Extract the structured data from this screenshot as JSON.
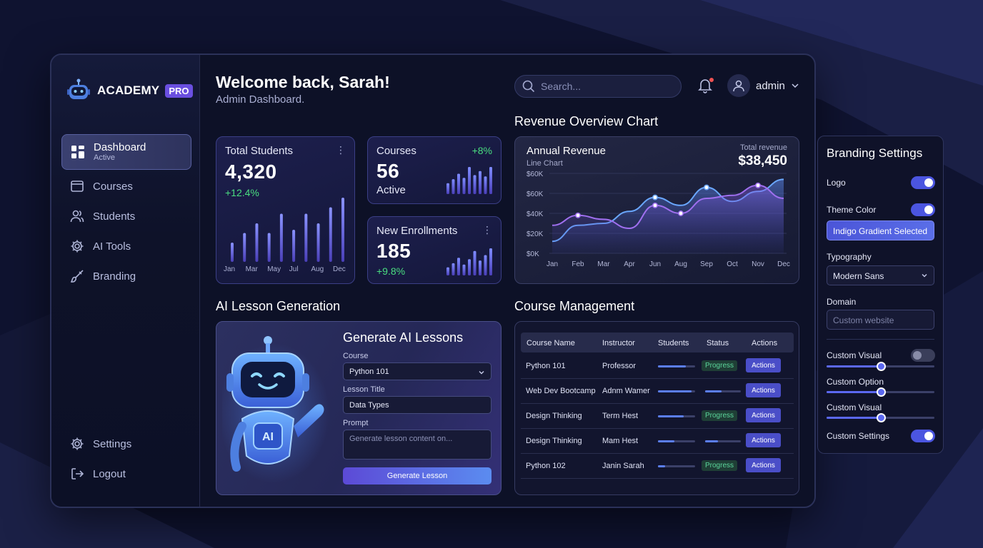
{
  "brand": {
    "name": "ACADEMY",
    "badge": "PRO"
  },
  "sidebar": {
    "items": [
      {
        "label": "Dashboard",
        "sub": "Active",
        "icon": "grid-icon"
      },
      {
        "label": "Courses",
        "icon": "folder-icon"
      },
      {
        "label": "Students",
        "icon": "users-icon"
      },
      {
        "label": "AI Tools",
        "icon": "gear-icon"
      },
      {
        "label": "Branding",
        "icon": "brush-icon"
      }
    ],
    "bottom": [
      {
        "label": "Settings",
        "icon": "gear-icon"
      },
      {
        "label": "Logout",
        "icon": "logout-icon"
      }
    ]
  },
  "header": {
    "welcome": "Welcome back, Sarah!",
    "subtitle": "Admin Dashboard.",
    "search_placeholder": "Search...",
    "user": "admin"
  },
  "stats": {
    "students": {
      "title": "Total Students",
      "value": "4,320",
      "change": "+12.4%",
      "months": [
        "Jan",
        "Mar",
        "May",
        "Jul",
        "Aug",
        "Dec"
      ],
      "bars": [
        0.3,
        0.45,
        0.6,
        0.45,
        0.75,
        0.5,
        0.75,
        0.6,
        0.85,
        1.0
      ]
    },
    "courses": {
      "title": "Courses",
      "value": "56",
      "change": "+8%",
      "label": "Active",
      "bars": [
        0.4,
        0.55,
        0.75,
        0.6,
        1.0,
        0.7,
        0.85,
        0.65,
        1.0
      ]
    },
    "enrollments": {
      "title": "New Enrollments",
      "value": "185",
      "change": "+9.8%",
      "bars": [
        0.3,
        0.45,
        0.65,
        0.4,
        0.6,
        0.9,
        0.55,
        0.75,
        1.0
      ]
    }
  },
  "revenue": {
    "section_title": "Revenue Overview Chart",
    "title": "Annual Revenue",
    "subtitle": "Line Chart",
    "total_label": "Total revenue",
    "total": "$38,450"
  },
  "chart_data": {
    "type": "area",
    "x": [
      "Jan",
      "Feb",
      "Mar",
      "Apr",
      "Jun",
      "Aug",
      "Sep",
      "Oct",
      "Nov",
      "Dec"
    ],
    "y_ticks": [
      "$0K",
      "$20K",
      "$40K",
      "$60K",
      "$60K"
    ],
    "ylim": [
      0,
      80000
    ],
    "series": [
      {
        "values": [
          12000,
          28000,
          30000,
          42000,
          56000,
          48000,
          66000,
          52000,
          62000,
          74000
        ]
      },
      {
        "values": [
          28000,
          38000,
          34000,
          25000,
          48000,
          40000,
          55000,
          58000,
          68000,
          55000
        ]
      }
    ]
  },
  "ai_lessons": {
    "section_title": "AI Lesson Generation",
    "heading": "Generate AI Lessons",
    "course_label": "Course",
    "course_value": "Python 101",
    "lesson_label": "Lesson Title",
    "lesson_value": "Data Types",
    "prompt_label": "Prompt",
    "prompt_placeholder": "Generate lesson content on...",
    "button": "Generate Lesson",
    "robot_chip": "AI"
  },
  "courses_table": {
    "section_title": "Course Management",
    "headers": [
      "Course Name",
      "Instructor",
      "Students",
      "Status",
      "Actions"
    ],
    "rows": [
      {
        "name": "Python 101",
        "instructor": "Professor",
        "students": 0.75,
        "status": "Progress",
        "action": "Actions"
      },
      {
        "name": "Web Dev Bootcamp",
        "instructor": "Adnm Wamer",
        "students": 0.9,
        "status_bar": 0.45,
        "action": "Actions"
      },
      {
        "name": "Design Thinking",
        "instructor": "Term Hest",
        "students": 0.7,
        "status": "Progress",
        "action": "Actions"
      },
      {
        "name": "Design Thinking",
        "instructor": "Mam Hest",
        "students": 0.45,
        "status_bar": 0.35,
        "action": "Actions"
      },
      {
        "name": "Python 102",
        "instructor": "Janin Sarah",
        "students": 0.2,
        "status": "Progress",
        "action": "Actions"
      }
    ]
  },
  "branding": {
    "title": "Branding Settings",
    "logo_label": "Logo",
    "theme_label": "Theme Color",
    "theme_selected": "Indigo Gradient Selected",
    "typography_label": "Typography",
    "typography_value": "Modern Sans",
    "domain_label": "Domain",
    "domain_placeholder": "Custom website",
    "custom_visual_1": "Custom Visual",
    "custom_option": "Custom Option",
    "custom_visual_2": "Custom Visual",
    "custom_settings": "Custom Settings",
    "slider_values": [
      0.5,
      0.5,
      0.5
    ]
  },
  "colors": {
    "accent": "#5b68f0",
    "success": "#4ade80",
    "bg": "#0d1127"
  }
}
